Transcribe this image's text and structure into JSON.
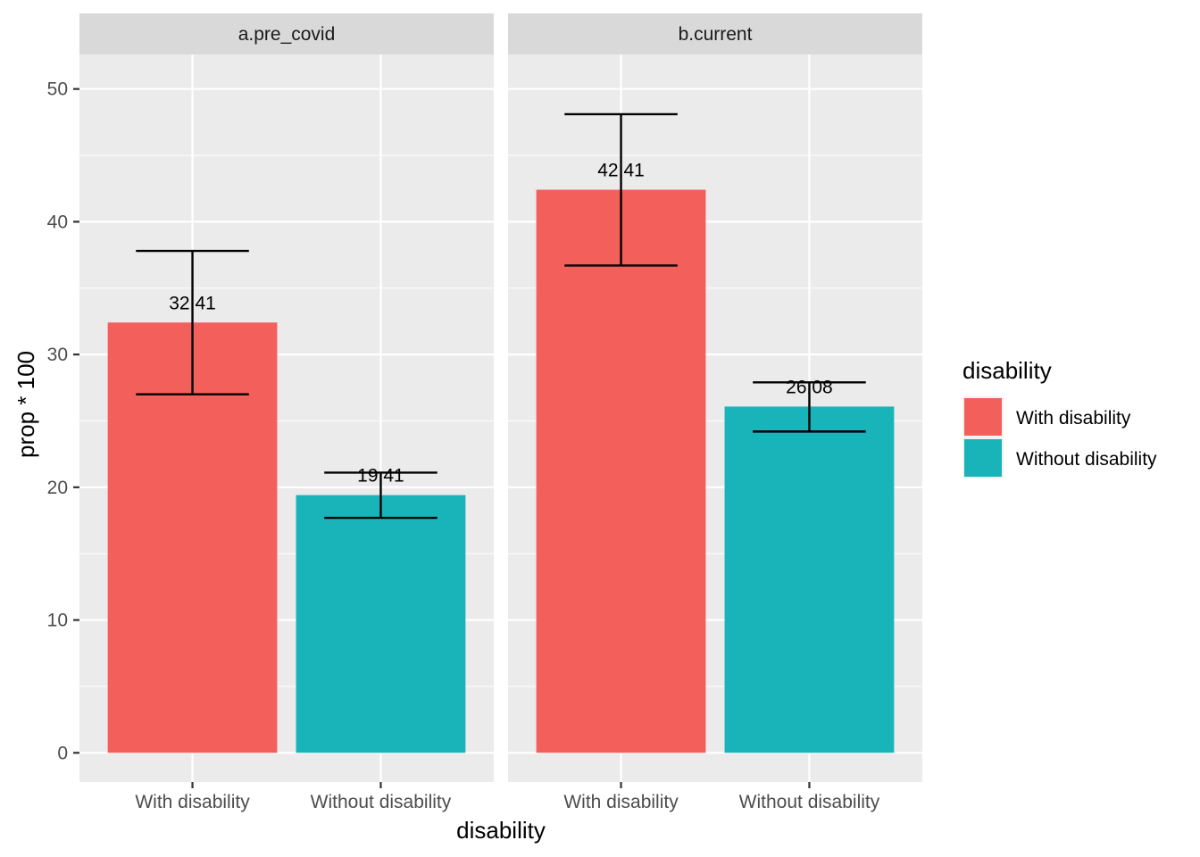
{
  "chart_data": {
    "type": "bar",
    "xlabel": "disability",
    "ylabel": "prop * 100",
    "ylim": [
      -2.2,
      52.6
    ],
    "yticks": [
      0,
      10,
      20,
      30,
      40,
      50
    ],
    "grid": true,
    "categories": [
      "With disability",
      "Without disability"
    ],
    "facets": [
      {
        "label": "a.pre_covid",
        "bars": [
          {
            "category": "With disability",
            "value": 32.41,
            "label": "32.41",
            "err_low": 27.0,
            "err_high": 37.8
          },
          {
            "category": "Without disability",
            "value": 19.41,
            "label": "19.41",
            "err_low": 17.7,
            "err_high": 21.1
          }
        ]
      },
      {
        "label": "b.current",
        "bars": [
          {
            "category": "With disability",
            "value": 42.41,
            "label": "42.41",
            "err_low": 36.7,
            "err_high": 48.1
          },
          {
            "category": "Without disability",
            "value": 26.08,
            "label": "26.08",
            "err_low": 24.2,
            "err_high": 27.9
          }
        ]
      }
    ],
    "legend": {
      "title": "disability",
      "position": "right",
      "entries": [
        {
          "label": "With disability",
          "color": "#F8766D"
        },
        {
          "label": "Without disability",
          "color": "#00BFC4"
        }
      ]
    },
    "colors": {
      "With disability": "#F3605B",
      "Without disability": "#19B4BA"
    }
  }
}
